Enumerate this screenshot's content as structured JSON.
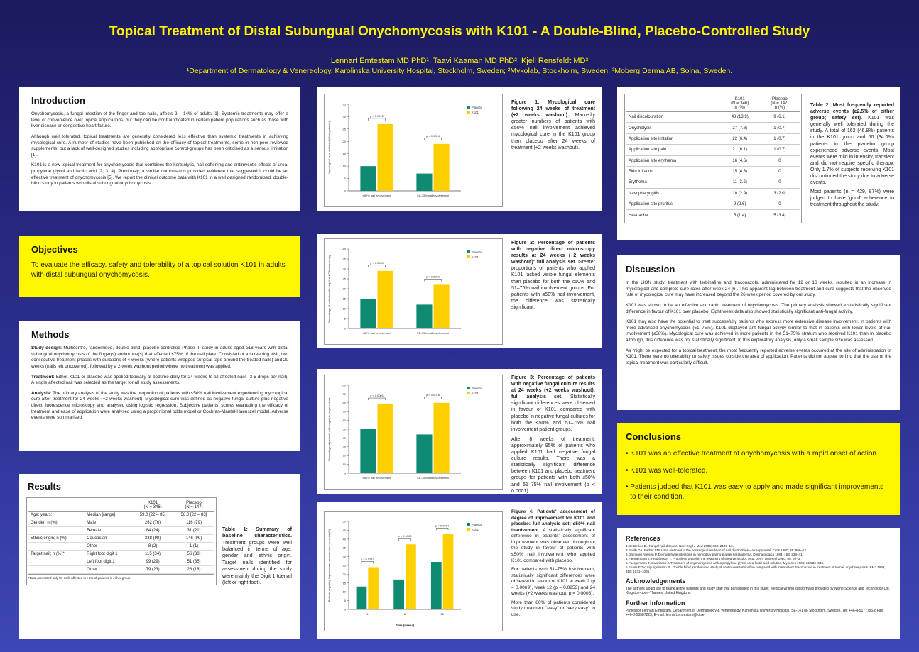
{
  "header": {
    "title": "Topical Treatment of Distal Subungual Onychomycosis with K101 - A Double-Blind, Placebo-Controlled Study",
    "authors": "Lennart Emtestam MD PhD¹, Taavi Kaaman MD PhD², Kjell Rensfeldt MD³",
    "affiliations": "¹Department of Dermatology & Venereology, Karolinska University Hospital, Stockholm, Sweden; ²Mykolab, Stockholm, Sweden; ³Moberg Derma AB, Solna, Sweden."
  },
  "introduction": {
    "heading": "Introduction",
    "paras": [
      "Onychomycosis, a fungal infection of the finger and toe nails, affects 2 – 14% of adults [1]. Systemic treatments may offer a level of convenience over topical applications, but they can be contraindicated in certain patient populations such as those with liver disease or congestive heart failure.",
      "Although well tolerated, topical treatments are generally considered less effective than systemic treatments in achieving mycological cure. A number of studies have been published on the efficacy of topical treatments, some in non-peer-reviewed supplements, but a lack of well-designed studies including appropriate control-groups has been criticised as a serious limitation [1].",
      "K101 is a new topical treatment for onychomycosis that combines the keratolytic, nail-softening and antimycotic effects of urea, propylene glycol and lactic acid [2, 3, 4]. Previously, a similar combination provided evidence that suggested it could be an effective treatment of onychomycosis [5]. We report the clinical outcome data with K101 in a well designed randomised, double-blind study in patients with distal subungual onychomycosis."
    ]
  },
  "objectives": {
    "heading": "Objectives",
    "text": "To evaluate the efficacy, safety and tolerability of a topical solution K101 in adults with distal subungual onychomycosis."
  },
  "methods": {
    "heading": "Methods",
    "paras": [
      {
        "label": "Study design:",
        "text": " Multicentre, randomised, double-blind, placebo-controlled Phase III study in adults aged ≥18 years with distal subungual onychomycosis of the finger(s) and/or toe(s) that affected ≤75% of the nail plate. Consisted of a screening visit, two consecutive treatment phases with durations of 4 weeks (where patients wrapped surgical tape around the treated nails) and 20 weeks (nails left uncovered), followed by a 2-week washout period where no treatment was applied."
      },
      {
        "label": "Treatment:",
        "text": " Either K101 or placebo was applied topically at bedtime daily for 24 weeks to all affected nails (3-5 drops per nail). A single affected nail was selected as the target for all study assessments."
      },
      {
        "label": "Analysis:",
        "text": " The primary analysis of the study was the proportion of patients with ≤50% nail involvement experiencing mycological cure after treatment for 24 weeks (+2 weeks washout). Mycological cure was defined as negative fungal culture plus negative direct fluorescence microscopy and analysed using logistic regression. Subjective patients' scores evaluating the efficacy of treatment and ease of application were analysed using a proportional odds model or Cochran-Mantel-Haenszel model. Adverse events were summarised."
      }
    ]
  },
  "results": {
    "heading": "Results",
    "table1": {
      "col_k101": "K101",
      "col_k101_n": "(N = 346)",
      "col_placebo": "Placebo",
      "col_placebo_n": "(N = 147)",
      "rows": [
        {
          "group": "Age; years:",
          "item": "Median [range]",
          "k101": "59.0 [22 – 85]",
          "placebo": "58.0 [22 – 83]"
        },
        {
          "group": "Gender; n (%):",
          "item": "Male",
          "k101": "262 (76)",
          "placebo": "116 (79)"
        },
        {
          "group": "",
          "item": "Female",
          "k101": "84 (24)",
          "placebo": "31 (21)"
        },
        {
          "group": "Ethnic origin; n (%):",
          "item": "Caucasian",
          "k101": "338 (98)",
          "placebo": "146 (99)"
        },
        {
          "group": "",
          "item": "Other",
          "k101": "8 (2)",
          "placebo": "1 (1)"
        },
        {
          "group": "Target nail; n (%)*:",
          "item": "Right foot digit 1",
          "k101": "115 (34)",
          "placebo": "56 (38)"
        },
        {
          "group": "",
          "item": "Left foot digit 1",
          "k101": "99 (29)",
          "placebo": "51 (35)"
        },
        {
          "group": "",
          "item": "Other",
          "k101": "79 (23)",
          "placebo": "26 (18)"
        }
      ],
      "footnote": "*Data presented only for nails affected in >5% of patients in either group"
    },
    "table1_caption": {
      "bold": "Table 1: Summary of baseline characteristics.",
      "text": " Treatment groups were well balanced in terms of age, gender and ethnic origin. Target nails identified for assessment during the study were mainly the Digit 1 toenail (left or right foot)."
    }
  },
  "figures": [
    {
      "caption_bold": "Figure 1: Mycological cure following 24 weeks of treatment (+2 weeks washout).",
      "caption_text": " Markedly greater numbers of patients with ≤50% nail involvement achieved mycological cure in the K101 group than placebo after 24 weeks of treatment (+2 weeks washout).",
      "extra": ""
    },
    {
      "caption_bold": "Figure 2: Percentage of patients with negative direct microscopy results at 24 weeks (+2 weeks washout): full analysis set.",
      "caption_text": " Greater proportions of patients who applied K101 lacked visible fungal elements than placebo for both the ≤50% and 51–75% nail involvement groups. For patients with ≤50% nail involvement, the difference was statistically significant.",
      "extra": ""
    },
    {
      "caption_bold": "Figure 3: Percentage of patients with negative fungal culture results at 24 weeks (+2 weeks washout): full analysis set.",
      "caption_text": " Statistically significant differences were observed in favour of K101 compared with placebo in negative fungal cultures for both the ≤50% and 51–75% nail involvement patient groups.",
      "extra": "After 8 weeks of treatment, approximately 95% of patients who applied K101 had negative fungal culture results. There was a statistically significant difference between K101 and placebo treatment groups for patients with both ≤50% and 51–75% nail involvement (p < 0.0001)."
    },
    {
      "caption_bold": "Figure 4: Patients' assessment of degree of improvement for K101 and placebo: full analysis set; ≤50% nail involvement.",
      "caption_text": " A statistically significant difference in patients' assessment of improvement was observed throughout the study in favour of patients with ≤50% nail involvement who applied K101 compared with placebo.",
      "extra": "For patients with 51–75% involvement, statistically significant differences were observed in favour of K101 at week 2 (p = 0.0069), week 12 (p = 0.0253) and 24 weeks (+2 weeks washout; p = 0.0008).",
      "extra2": "More than 80% of patients considered study treatment \"easy\" or \"very easy\" to use."
    }
  ],
  "chart_data": [
    {
      "type": "bar",
      "categories": [
        "≤50% nail involvement",
        "51–75% nail involvement"
      ],
      "series": [
        {
          "name": "Placebo",
          "values": [
            10,
            7
          ]
        },
        {
          "name": "K101",
          "values": [
            27,
            19
          ]
        }
      ],
      "pvalues": [
        "p = 0.0012",
        "p = 0.1024"
      ],
      "ylabel": "Mycological cure achieved (% of patients)",
      "ylim": [
        0,
        35
      ],
      "yticks": [
        0,
        5,
        10,
        15,
        20,
        25,
        30,
        35
      ],
      "legend": "top-right"
    },
    {
      "type": "bar",
      "categories": [
        "≤50% nail involvement",
        "51–75% nail involvement"
      ],
      "series": [
        {
          "name": "Placebo",
          "values": [
            15,
            12
          ]
        },
        {
          "name": "K101",
          "values": [
            29,
            22
          ]
        }
      ],
      "pvalues": [
        "p = 0.0069",
        "p = 0.2259"
      ],
      "ylabel": "Percentage of patients with negative KOH microscopy",
      "ylim": [
        0,
        40
      ],
      "yticks": [
        0,
        5,
        10,
        15,
        20,
        25,
        30,
        35,
        40
      ],
      "legend": "top-right"
    },
    {
      "type": "bar",
      "categories": [
        "≤50% nail involvement",
        "51–75% nail involvement"
      ],
      "series": [
        {
          "name": "Placebo",
          "values": [
            50,
            44
          ]
        },
        {
          "name": "K101",
          "values": [
            79,
            80
          ]
        }
      ],
      "pvalues": [
        "p < 0.0001",
        "p = 0.0018"
      ],
      "ylabel": "Percentage of patients with negative fungal culture",
      "ylim": [
        0,
        100
      ],
      "yticks": [
        0,
        10,
        20,
        30,
        40,
        50,
        60,
        70,
        80,
        90,
        100
      ],
      "legend": "top-right"
    },
    {
      "type": "bar",
      "categories": [
        "4",
        "8",
        "26"
      ],
      "series": [
        {
          "name": "Placebo",
          "values": [
            13,
            17,
            27
          ]
        },
        {
          "name": "K101",
          "values": [
            24,
            37,
            43
          ]
        }
      ],
      "pvalues": [
        "p = 0.0210",
        "p = 0.0008",
        "p = 0.0004"
      ],
      "ylabel": "Patients reporting improvement almost cured or cured (%)",
      "xlabel": "Time (weeks)",
      "ylim": [
        0,
        50
      ],
      "yticks": [
        0,
        5,
        10,
        15,
        20,
        25,
        30,
        35,
        40,
        45,
        50
      ],
      "legend": "top-right"
    }
  ],
  "colors": {
    "placebo": "#0f8a73",
    "k101": "#ffd000"
  },
  "adverse": {
    "col_k101": "K101",
    "col_k101_n": "(N = 346)",
    "col_k101_pct": "n (%)",
    "col_placebo": "Placebo",
    "col_placebo_n": "(N = 147)",
    "col_placebo_pct": "n (%)",
    "rows": [
      {
        "event": "Nail discolouration",
        "k101": "48 (13.9)",
        "placebo": "9 (6.1)"
      },
      {
        "event": "Onycholysis",
        "k101": "27 (7.8)",
        "placebo": "1 (0.7)"
      },
      {
        "event": "Application site irritation",
        "k101": "22 (6.4)",
        "placebo": "1 (0.7)"
      },
      {
        "event": "Application site pain",
        "k101": "21 (6.1)",
        "placebo": "1 (0.7)"
      },
      {
        "event": "Application site erythema",
        "k101": "16 (4.6)",
        "placebo": "0"
      },
      {
        "event": "Skin irritation",
        "k101": "15 (4.3)",
        "placebo": "0"
      },
      {
        "event": "Erythema",
        "k101": "11 (3.2)",
        "placebo": "0"
      },
      {
        "event": "Nasopharyngitis",
        "k101": "10 (2.9)",
        "placebo": "3 (2.0)"
      },
      {
        "event": "Application site pruritus",
        "k101": "9 (2.6)",
        "placebo": "0"
      },
      {
        "event": "Headache",
        "k101": "5 (1.4)",
        "placebo": "5 (3.4)"
      }
    ],
    "caption_bold": "Table 2: Most frequently reported adverse events (≥2.5% of either group; safety set).",
    "caption_text": " K101 was generally well tolerated during the study. A total of 162 (46.8%) patients in the K101 group and 50 (34.0%) patients in the placebo group experienced adverse events. Most events were mild in intensity, transient and did not require specific therapy. Only 1.7% of subjects receiving K101 discontinued the study due to adverse events.",
    "caption_extra": "Most patients (n = 429, 87%) were judged to have 'good' adherence to treatment throughout the study."
  },
  "discussion": {
    "heading": "Discussion",
    "paras": [
      "In the LION study, treatment with terbinafine and itraconazole, administered for 12 or 16 weeks, resulted in an increase in mycological and complete cure rates after week 24 [6]. This apparent lag between treatment and cure suggests that the observed rate of mycological cure may have increased beyond the 26-week period covered by our study.",
      "K101 was shown to be an effective and rapid treatment of onychomycosis. The primary analysis showed a statistically significant difference in favour of K101 over placebo. Eight-week data also showed statistically significant anti-fungal activity.",
      "K101 may also have the potential to treat successfully patients who express more extensive disease involvement. In patients with more advanced onychomycosis (51–75%), K101 displayed anti-fungal activity similar to that in patients with lower levels of nail involvement (≤50%). Mycological cure was achieved in more patients in the 51–75% stratum who received K101 than in placebo although, this difference was not statistically significant. In this exploratory analysis, only a small sample size was assessed.",
      "As might be expected for a topical treatment, the most frequently reported adverse events occurred at the site of administration of K101. There were no tolerability or safety issues outside the area of application. Patients did not appear to find that the use of the topical treatment was particularly difficult."
    ]
  },
  "conclusions": {
    "heading": "Conclusions",
    "items": [
      "K101 was an effective treatment of onychomycosis with a rapid onset of action.",
      "K101 was well-tolerated.",
      "Patients judged that K101 was easy to apply and made significant improvements to their condition."
    ]
  },
  "references": {
    "heading": "References",
    "items": [
      "1.De Berker D.. Fungal nail disease. New Engl J Med 2009; 360: 2108–16.",
      "2.South DA, Farber EM. Urea ointment in the nonsurgical avulsion of nail dystrophies—a reappraisal. Cutis 1980; 25: 609–12.",
      "3.Gamborg Nielsen P. Dermatohytie infections in hereditary palmo-planter keratoderma. Dermatologica 1984; 168: 238–41.",
      "4.Faergemann J, Fredriksson T. Propylene glycol in the treatment of tinea versicolor. Acta Derm Venereol 1980; 60: 92–3.",
      "5.Faergemann J, Swanbeck J. Treatment of onychomycosis with a propylene glycol-urea-lactic acid solution. Mycoses 1989; 32:536–540.",
      "6.Evans EGV, Sigurgeirsson B.. Double blind, randomised study of continuous terbinafine compared with intermittent itraconazole in treatment of toenail onychomycosis. BMJ 1999; 318: 1031–1035."
    ],
    "ack_heading": "Acknowledgements",
    "ack_text": "The authors would like to thank all the patients and study staff that participated in this study. Medical writing support was provided by Niche Science and Technology Ltd, Kingston-upon-Thames, United Kingdom.",
    "info_heading": "Further Information",
    "info_text": "Professor Lennart Emtestam, Department of Dermatology & Venereology, Karolinska University Hospital, SE-141 86 Stockholm, Sweden. Tel: +46-8-51777553; Fax: +46-8-58587223; E-mail: lennart.emtestam@ki.se"
  }
}
